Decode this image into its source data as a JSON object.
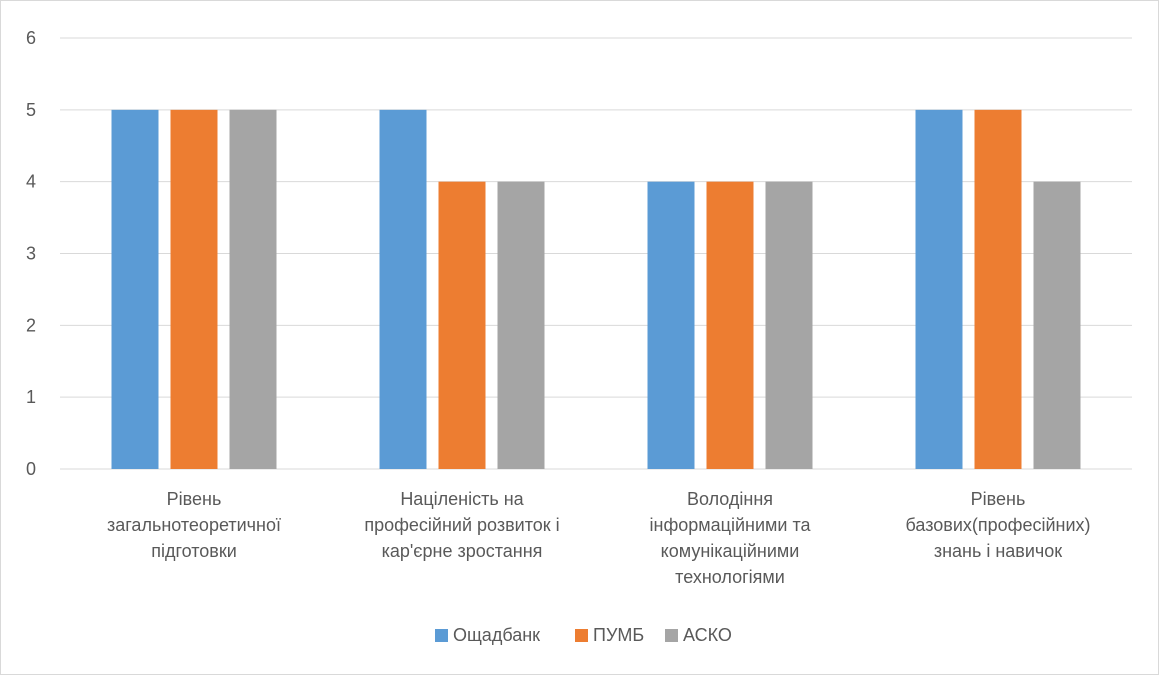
{
  "chart_data": {
    "type": "bar",
    "categories": [
      [
        "Рівень",
        "загальнотеоретичної",
        "підготовки"
      ],
      [
        "Націленість на",
        "професійний розвиток і",
        "кар'єрне зростання"
      ],
      [
        "Володіння",
        "інформаційними та",
        "комунікаційними",
        "технологіями"
      ],
      [
        "Рівень",
        "базових(професійних)",
        "знань і навичок"
      ]
    ],
    "series": [
      {
        "name": "Ощадбанк",
        "color": "#5b9bd5",
        "values": [
          5,
          5,
          4,
          5
        ]
      },
      {
        "name": "ПУМБ",
        "color": "#ed7d31",
        "values": [
          5,
          4,
          4,
          5
        ]
      },
      {
        "name": "АСКО",
        "color": "#a5a5a5",
        "values": [
          5,
          4,
          4,
          4
        ]
      }
    ],
    "ylim": [
      0,
      6
    ],
    "yticks": [
      0,
      1,
      2,
      3,
      4,
      5,
      6
    ],
    "grid": true,
    "legend": "bottom",
    "title": "",
    "xlabel": "",
    "ylabel": ""
  }
}
